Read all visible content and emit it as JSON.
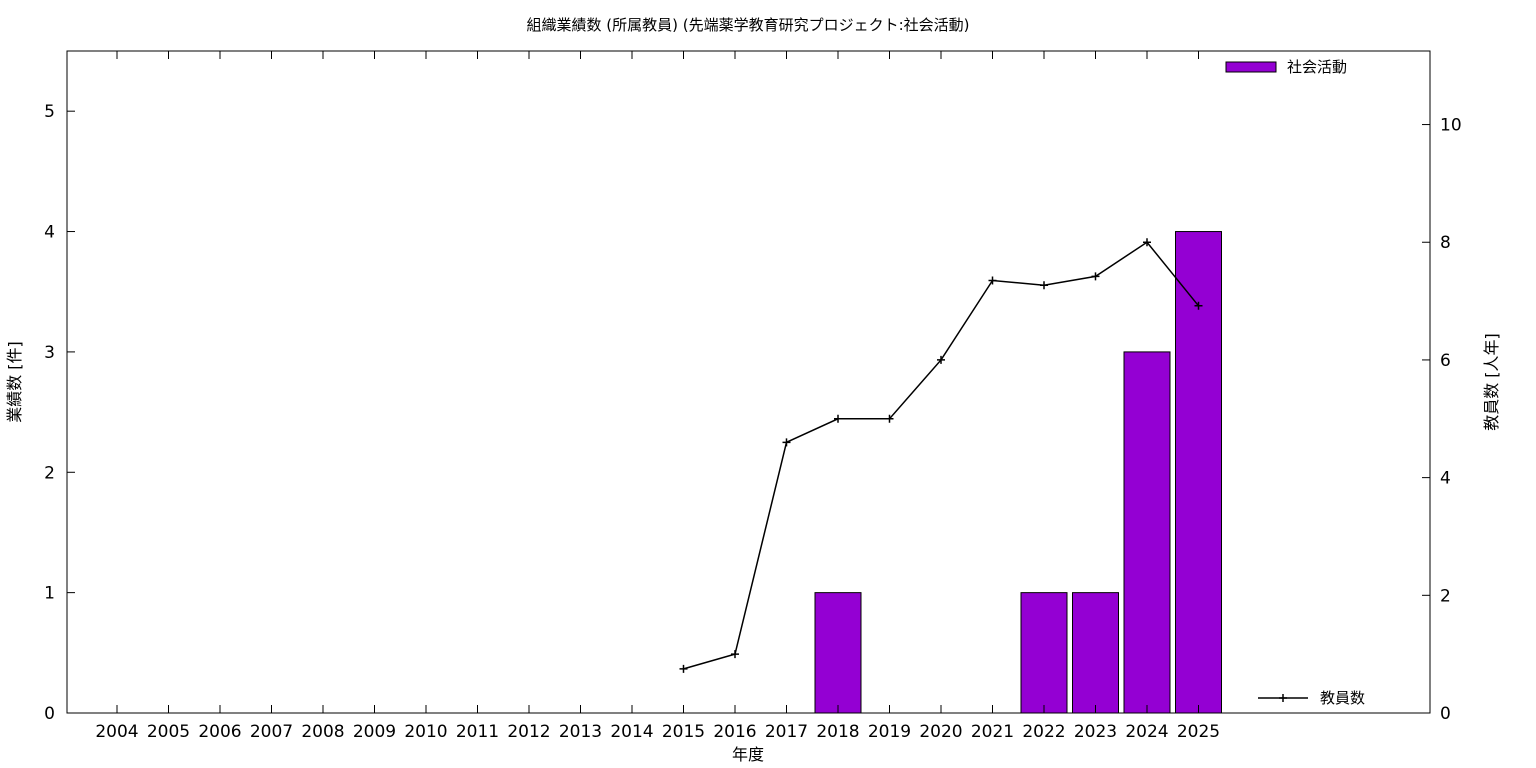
{
  "chart_data": {
    "type": "bar",
    "title": "組織業績数 (所属教員) (先端薬学教育研究プロジェクト:社会活動)",
    "xlabel": "年度",
    "ylabel": "業績数 [件]",
    "y2label": "教員数 [人年]",
    "categories": [
      "2004",
      "2005",
      "2006",
      "2007",
      "2008",
      "2009",
      "2010",
      "2011",
      "2012",
      "2013",
      "2014",
      "2015",
      "2016",
      "2017",
      "2018",
      "2019",
      "2020",
      "2021",
      "2022",
      "2023",
      "2024",
      "2025"
    ],
    "ylim": [
      0,
      5.5
    ],
    "y2lim": [
      0,
      11.25
    ],
    "yticks": [
      "0",
      "1",
      "2",
      "3",
      "4",
      "5"
    ],
    "y2ticks": [
      "0",
      "2",
      "4",
      "6",
      "8",
      "10"
    ],
    "series": [
      {
        "name": "社会活動",
        "kind": "bar",
        "axis": "y",
        "color": "#9400d3",
        "values": [
          0,
          0,
          0,
          0,
          0,
          0,
          0,
          0,
          0,
          0,
          0,
          0,
          0,
          0,
          1,
          0,
          0,
          0,
          1,
          1,
          3,
          4
        ]
      },
      {
        "name": "教員数",
        "kind": "line",
        "axis": "y2",
        "color": "#000000",
        "values": [
          null,
          null,
          null,
          null,
          null,
          null,
          null,
          null,
          null,
          null,
          null,
          0.75,
          1.0,
          4.6,
          5.0,
          5.0,
          6.0,
          7.35,
          7.27,
          7.42,
          8.0,
          6.92
        ]
      }
    ],
    "grid": false,
    "legend": [
      "top-right",
      "bottom-right"
    ]
  }
}
